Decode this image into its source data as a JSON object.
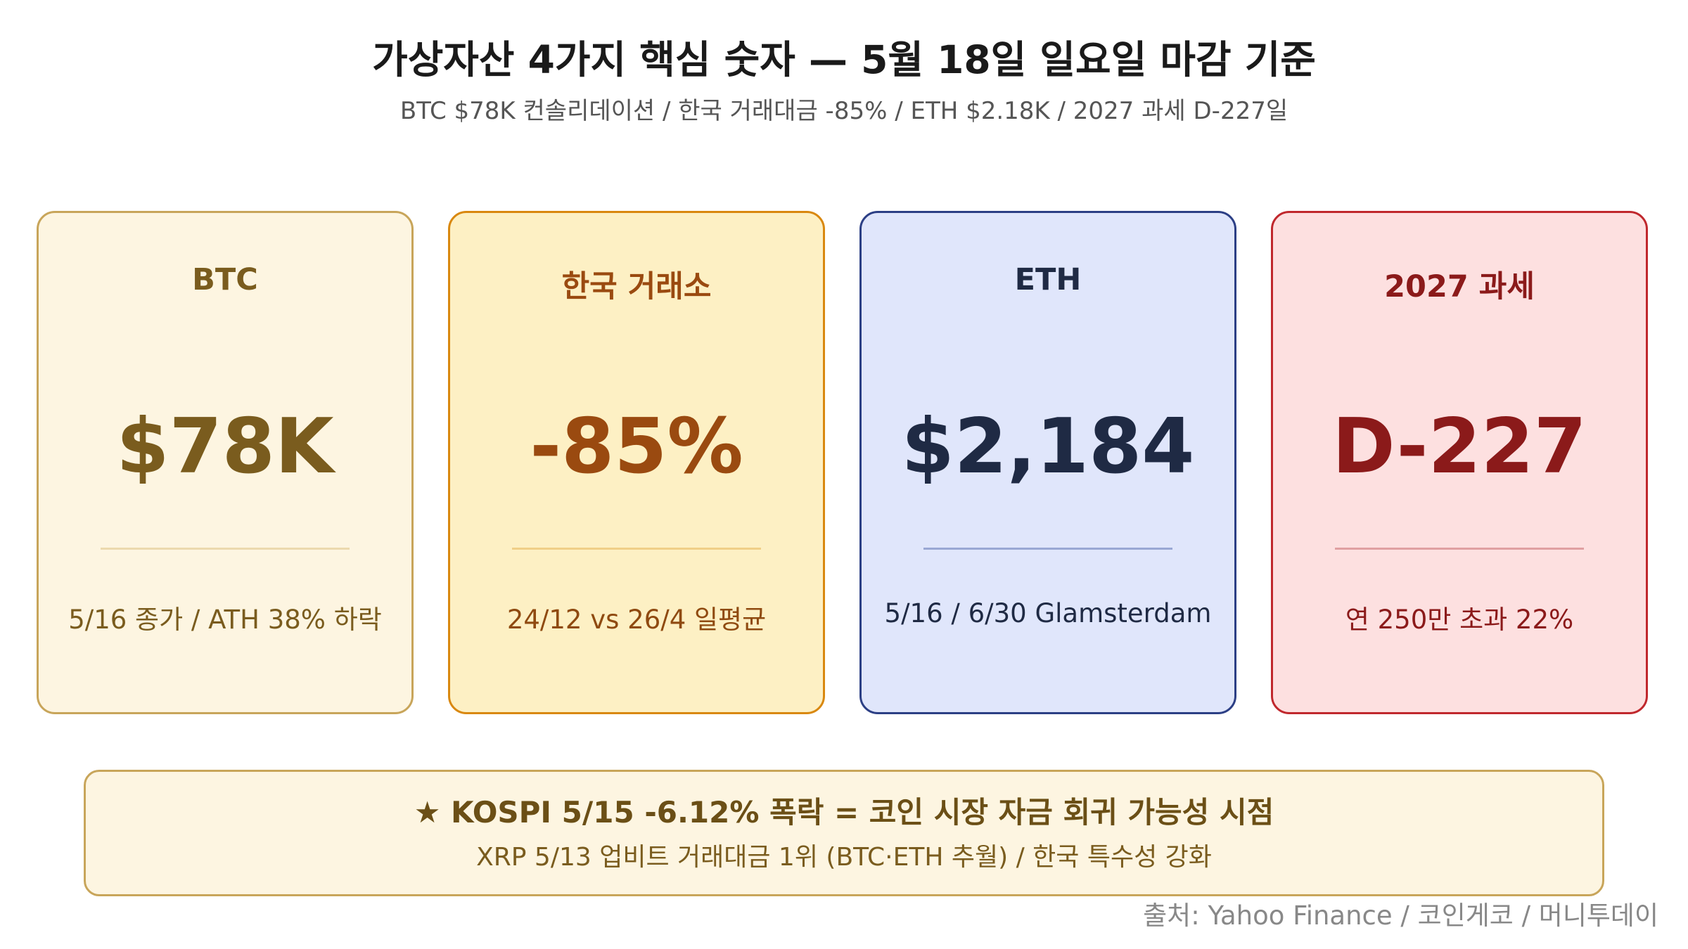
{
  "header": {
    "title": "가상자산 4가지 핵심 숫자 — 5월 18일 일요일 마감 기준",
    "subtitle": "BTC $78K 컨솔리데이션 / 한국 거래대금 -85% / ETH $2.18K / 2027 과세 D-227일"
  },
  "cards": [
    {
      "label": "BTC",
      "value": "$78K",
      "caption": "5/16 종가 / ATH 38% 하락"
    },
    {
      "label": "한국 거래소",
      "value": "-85%",
      "caption": "24/12 vs 26/4 일평균"
    },
    {
      "label": "ETH",
      "value": "$2,184",
      "caption": "5/16 / 6/30 Glamsterdam"
    },
    {
      "label": "2027 과세",
      "value": "D-227",
      "caption": "연 250만 초과 22%"
    }
  ],
  "callout": {
    "headline": "★ KOSPI 5/15 -6.12% 폭락 = 코인 시장 자금 회귀 가능성 시점",
    "detail": "XRP 5/13 업비트 거래대금 1위 (BTC·ETH 추월) / 한국 특수성 강화"
  },
  "source": "출처: Yahoo Finance / 코인게코 / 머니투데이"
}
